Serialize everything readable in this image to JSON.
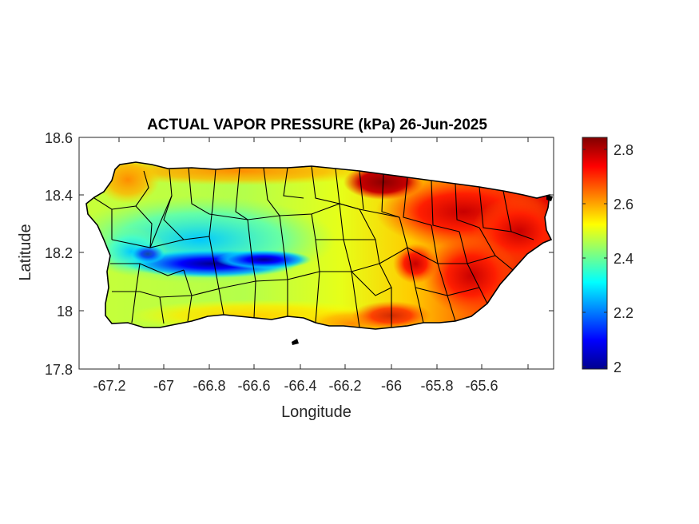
{
  "figure": {
    "title": "ACTUAL VAPOR PRESSURE (kPa) 26-Jun-2025"
  },
  "map": {
    "xlabel": "Longitude",
    "ylabel": "Latitude",
    "xlim": [
      -67.3,
      -65.6
    ],
    "ylim": [
      17.8,
      18.6
    ],
    "xticks": [
      "-67.2",
      "-67",
      "-66.8",
      "-66.6",
      "-66.4",
      "-66.2",
      "-66",
      "-65.8",
      "-65.6"
    ],
    "yticks": [
      "18.6",
      "18.4",
      "18.2",
      "18",
      "17.8"
    ]
  },
  "colorbar": {
    "range": [
      2.0,
      2.85
    ],
    "colormap": "jet",
    "ticks": [
      "2.8",
      "2.6",
      "2.4",
      "2.2",
      "2"
    ]
  },
  "field": {
    "variable": "actual vapor pressure",
    "units": "kPa",
    "region": "Puerto Rico",
    "low_band": {
      "value_min_approx": 2.0,
      "location": "central interior ridge, lon -66.95 to -66.45, lat ~18.15"
    },
    "high_zones": [
      {
        "value_approx": 2.85,
        "location": "north coast near lon -66.2, lat ~18.45"
      },
      {
        "value_approx": 2.8,
        "location": "eastern region, lon -66.0 to -65.6"
      },
      {
        "value_approx": 2.75,
        "location": "south-east coast"
      }
    ],
    "colors": {
      "low": "#00008f",
      "mid": "#7fff7f",
      "high": "#800000"
    }
  }
}
